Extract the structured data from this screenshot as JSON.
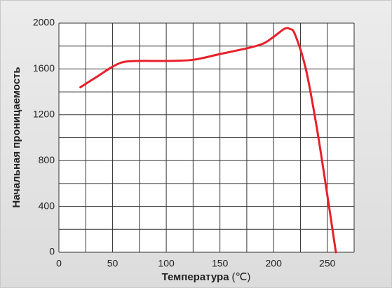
{
  "chart_data": {
    "type": "line",
    "ylabel": "Начальная проницаемость",
    "xlabel": "Температура",
    "xlabel_unit": "(℃)",
    "x": [
      20,
      30,
      40,
      50,
      60,
      75,
      100,
      125,
      150,
      175,
      190,
      200,
      210,
      215,
      220,
      230,
      240,
      250,
      258
    ],
    "series": [
      {
        "color": "#e8202a",
        "values": [
          1440,
          1500,
          1560,
          1620,
          1660,
          1670,
          1670,
          1680,
          1730,
          1780,
          1820,
          1880,
          1950,
          1950,
          1900,
          1600,
          1100,
          500,
          0
        ]
      }
    ],
    "xlim": [
      0,
      275
    ],
    "ylim": [
      0,
      2000
    ],
    "xticks": [
      0,
      50,
      100,
      150,
      200,
      250
    ],
    "yticks": [
      0,
      400,
      800,
      1200,
      1600,
      2000
    ],
    "x_minor_ticks": [
      25,
      75,
      125,
      175,
      225,
      275
    ],
    "y_minor_ticks": [
      200,
      600,
      1000,
      1400,
      1800
    ],
    "grid": true
  }
}
